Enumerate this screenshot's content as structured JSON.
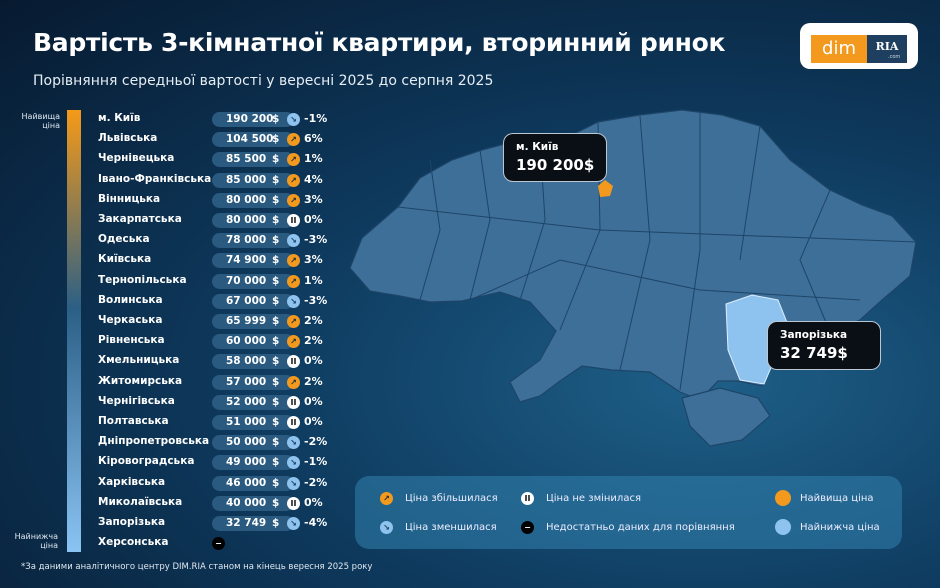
{
  "title": "Вартість 3-кімнатної квартири, вторинний ринок",
  "subtitle": "Порівняння середньої вартості у вересні 2025 до серпня 2025",
  "logo": {
    "left": "dim",
    "right": "RIA",
    "domain": ".com"
  },
  "scale": {
    "top": "Найвища ціна",
    "bottom": "Найнижча ціна"
  },
  "currency": "$",
  "rows": [
    {
      "name": "м. Київ",
      "price": "190 200",
      "trend": "down",
      "pct": "-1%"
    },
    {
      "name": "Львівська",
      "price": "104 500",
      "trend": "up",
      "pct": "6%"
    },
    {
      "name": "Чернівецька",
      "price": "85 500",
      "trend": "up",
      "pct": "1%"
    },
    {
      "name": "Івано-Франківська",
      "price": "85 000",
      "trend": "up",
      "pct": "4%"
    },
    {
      "name": "Вінницька",
      "price": "80 000",
      "trend": "up",
      "pct": "3%"
    },
    {
      "name": "Закарпатська",
      "price": "80 000",
      "trend": "same",
      "pct": "0%"
    },
    {
      "name": "Одеська",
      "price": "78 000",
      "trend": "down",
      "pct": "-3%"
    },
    {
      "name": "Київська",
      "price": "74 900",
      "trend": "up",
      "pct": "3%"
    },
    {
      "name": "Тернопільська",
      "price": "70 000",
      "trend": "up",
      "pct": "1%"
    },
    {
      "name": "Волинська",
      "price": "67 000",
      "trend": "down",
      "pct": "-3%"
    },
    {
      "name": "Черкаська",
      "price": "65 999",
      "trend": "up",
      "pct": "2%"
    },
    {
      "name": "Рівненська",
      "price": "60 000",
      "trend": "up",
      "pct": "2%"
    },
    {
      "name": "Хмельницька",
      "price": "58 000",
      "trend": "same",
      "pct": "0%"
    },
    {
      "name": "Житомирська",
      "price": "57 000",
      "trend": "up",
      "pct": "2%"
    },
    {
      "name": "Чернігівська",
      "price": "52 000",
      "trend": "same",
      "pct": "0%"
    },
    {
      "name": "Полтавська",
      "price": "51 000",
      "trend": "same",
      "pct": "0%"
    },
    {
      "name": "Дніпропетровська",
      "price": "50 000",
      "trend": "down",
      "pct": "-2%"
    },
    {
      "name": "Кіровоградська",
      "price": "49 000",
      "trend": "down",
      "pct": "-1%"
    },
    {
      "name": "Харківська",
      "price": "46 000",
      "trend": "down",
      "pct": "-2%"
    },
    {
      "name": "Миколаївська",
      "price": "40 000",
      "trend": "same",
      "pct": "0%"
    },
    {
      "name": "Запорізька",
      "price": "32 749",
      "trend": "down",
      "pct": "-4%"
    },
    {
      "name": "Херсонська",
      "price": null,
      "trend": "nodata",
      "pct": null
    }
  ],
  "map": {
    "highest": {
      "name": "м. Київ",
      "price": "190 200$"
    },
    "lowest": {
      "name": "Запорізька",
      "price": "32 749$"
    }
  },
  "legend": {
    "up": "Ціна збільшилася",
    "down": "Ціна зменшилася",
    "same": "Ціна не змінилася",
    "nodata": "Недостатньо даних для порівняння",
    "highest": "Найвища ціна",
    "lowest": "Найнижча ціна"
  },
  "colors": {
    "highest": "#f39a1e",
    "lowest": "#8fc3ef",
    "map": "#3d6f99",
    "background": "#0e3a5e"
  },
  "footnote": "*За даними аналітичного центру DIM.RIA станом на кінець вересня 2025 року"
}
